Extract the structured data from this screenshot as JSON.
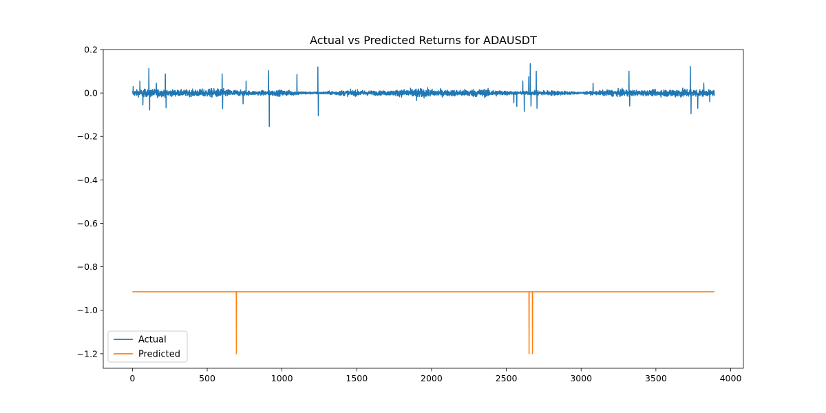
{
  "chart_data": {
    "type": "line",
    "title": "Actual vs Predicted Returns for ADAUSDT",
    "xlabel": "",
    "ylabel": "",
    "xlim": [
      -195,
      4085
    ],
    "ylim": [
      -1.267,
      0.2
    ],
    "x_ticks": [
      0,
      500,
      1000,
      1500,
      2000,
      2500,
      3000,
      3500,
      4000
    ],
    "x_tick_labels": [
      "0",
      "500",
      "1000",
      "1500",
      "2000",
      "2500",
      "3000",
      "3500",
      "4000"
    ],
    "y_ticks": [
      0.2,
      0.0,
      -0.2,
      -0.4,
      -0.6,
      -0.8,
      -1.0,
      -1.2
    ],
    "y_tick_labels": [
      "0.2",
      "0.0",
      "−0.2",
      "−0.4",
      "−0.6",
      "−0.8",
      "−1.0",
      "−1.2"
    ],
    "grid": false,
    "legend_position": "lower-left",
    "n_points": 3892,
    "series": [
      {
        "name": "Actual",
        "color": "#1f77b4",
        "baseline_amplitude": 0.012,
        "spikes": [
          {
            "x": 5,
            "y": 0.03
          },
          {
            "x": 50,
            "y": 0.055
          },
          {
            "x": 70,
            "y": -0.055
          },
          {
            "x": 110,
            "y": 0.113
          },
          {
            "x": 115,
            "y": -0.078
          },
          {
            "x": 160,
            "y": 0.045
          },
          {
            "x": 220,
            "y": 0.088
          },
          {
            "x": 225,
            "y": -0.068
          },
          {
            "x": 600,
            "y": 0.088
          },
          {
            "x": 603,
            "y": -0.072
          },
          {
            "x": 740,
            "y": -0.05
          },
          {
            "x": 760,
            "y": 0.055
          },
          {
            "x": 910,
            "y": 0.103
          },
          {
            "x": 915,
            "y": -0.155
          },
          {
            "x": 1100,
            "y": 0.085
          },
          {
            "x": 1240,
            "y": 0.12
          },
          {
            "x": 1243,
            "y": -0.105
          },
          {
            "x": 1900,
            "y": -0.035
          },
          {
            "x": 2550,
            "y": -0.045
          },
          {
            "x": 2570,
            "y": -0.062
          },
          {
            "x": 2610,
            "y": 0.055
          },
          {
            "x": 2620,
            "y": -0.085
          },
          {
            "x": 2650,
            "y": 0.075
          },
          {
            "x": 2660,
            "y": 0.135
          },
          {
            "x": 2665,
            "y": -0.06
          },
          {
            "x": 2700,
            "y": 0.1
          },
          {
            "x": 2705,
            "y": -0.07
          },
          {
            "x": 3080,
            "y": 0.045
          },
          {
            "x": 3320,
            "y": 0.1
          },
          {
            "x": 3325,
            "y": -0.06
          },
          {
            "x": 3730,
            "y": 0.122
          },
          {
            "x": 3735,
            "y": -0.095
          },
          {
            "x": 3780,
            "y": -0.07
          },
          {
            "x": 3820,
            "y": 0.045
          },
          {
            "x": 3860,
            "y": -0.04
          }
        ]
      },
      {
        "name": "Predicted",
        "color": "#ff7f0e",
        "baseline": -0.915,
        "spikes": [
          {
            "x": 695,
            "y": -1.2
          },
          {
            "x": 2652,
            "y": -1.2
          },
          {
            "x": 2675,
            "y": -1.2
          }
        ]
      }
    ]
  }
}
